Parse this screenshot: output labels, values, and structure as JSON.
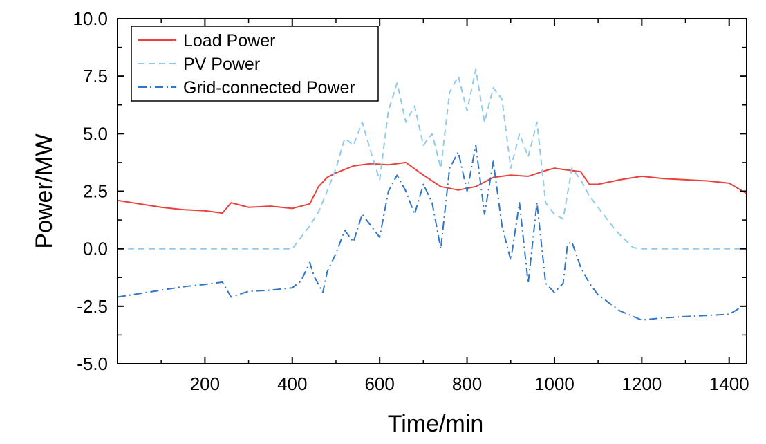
{
  "chart_data": {
    "type": "line",
    "xlabel": "Time/min",
    "ylabel": "Power/MW",
    "xlim": [
      0,
      1440
    ],
    "ylim": [
      -5.0,
      10.0
    ],
    "x_ticks": [
      200,
      400,
      600,
      800,
      1000,
      1200,
      1400
    ],
    "x_tick_labels": [
      "200",
      "400",
      "600",
      "800",
      "1000",
      "1200",
      "1400"
    ],
    "y_ticks": [
      -5.0,
      -2.5,
      0.0,
      2.5,
      5.0,
      7.5,
      10.0
    ],
    "y_tick_labels": [
      "-5.0",
      "-2.5",
      "0.0",
      "2.5",
      "5.0",
      "7.5",
      "10.0"
    ],
    "legend_position": "top-left",
    "series": [
      {
        "name": "Load Power",
        "color": "#e8413c",
        "dash": "solid",
        "x": [
          0,
          50,
          100,
          150,
          200,
          240,
          260,
          300,
          350,
          400,
          440,
          460,
          480,
          500,
          540,
          580,
          620,
          660,
          700,
          740,
          780,
          820,
          860,
          900,
          940,
          980,
          1000,
          1040,
          1060,
          1080,
          1100,
          1150,
          1200,
          1250,
          1300,
          1350,
          1400,
          1440
        ],
        "y": [
          2.1,
          1.95,
          1.8,
          1.7,
          1.65,
          1.55,
          2.0,
          1.8,
          1.85,
          1.75,
          1.95,
          2.7,
          3.1,
          3.3,
          3.6,
          3.7,
          3.65,
          3.75,
          3.2,
          2.7,
          2.55,
          2.7,
          3.1,
          3.2,
          3.15,
          3.4,
          3.5,
          3.4,
          3.35,
          2.8,
          2.8,
          3.0,
          3.15,
          3.05,
          3.0,
          2.95,
          2.85,
          2.4
        ]
      },
      {
        "name": "PV Power",
        "color": "#8ecbee",
        "dash": "dashed",
        "x": [
          0,
          400,
          420,
          440,
          460,
          480,
          500,
          520,
          540,
          560,
          580,
          600,
          620,
          640,
          660,
          680,
          700,
          720,
          740,
          760,
          780,
          800,
          820,
          840,
          860,
          880,
          900,
          920,
          940,
          960,
          980,
          1000,
          1020,
          1040,
          1060,
          1080,
          1100,
          1140,
          1180,
          1200,
          1300,
          1440
        ],
        "y": [
          0.0,
          0.0,
          0.5,
          1.0,
          1.6,
          2.5,
          3.5,
          4.8,
          4.5,
          5.5,
          4.2,
          3.0,
          6.0,
          7.2,
          5.5,
          6.2,
          4.5,
          5.0,
          3.5,
          6.8,
          7.5,
          6.0,
          7.8,
          5.5,
          7.0,
          6.5,
          3.5,
          5.0,
          4.0,
          5.5,
          2.0,
          1.5,
          1.3,
          3.5,
          3.0,
          2.3,
          1.8,
          0.8,
          0.05,
          0.0,
          0.0,
          0.0
        ]
      },
      {
        "name": "Grid-connected Power",
        "color": "#2e76c8",
        "dash": "dashdot",
        "x": [
          0,
          50,
          100,
          150,
          200,
          240,
          260,
          300,
          350,
          400,
          420,
          440,
          450,
          470,
          480,
          500,
          520,
          540,
          560,
          580,
          600,
          620,
          640,
          660,
          680,
          700,
          720,
          740,
          760,
          780,
          800,
          820,
          840,
          860,
          880,
          900,
          920,
          940,
          960,
          980,
          1000,
          1020,
          1030,
          1040,
          1060,
          1080,
          1100,
          1150,
          1200,
          1250,
          1300,
          1350,
          1400,
          1440
        ],
        "y": [
          -2.1,
          -1.95,
          -1.8,
          -1.65,
          -1.55,
          -1.45,
          -2.1,
          -1.85,
          -1.8,
          -1.7,
          -1.4,
          -0.6,
          -1.2,
          -1.9,
          -1.0,
          -0.2,
          0.8,
          0.3,
          1.5,
          1.0,
          0.5,
          2.5,
          3.2,
          2.5,
          1.5,
          2.8,
          2.0,
          0.0,
          3.5,
          4.2,
          2.5,
          4.5,
          1.5,
          3.8,
          1.0,
          -0.5,
          2.0,
          -1.5,
          2.0,
          -1.5,
          -1.9,
          -1.5,
          0.2,
          0.3,
          -0.8,
          -1.5,
          -2.0,
          -2.7,
          -3.1,
          -3.0,
          -2.95,
          -2.9,
          -2.85,
          -2.4
        ]
      }
    ]
  }
}
